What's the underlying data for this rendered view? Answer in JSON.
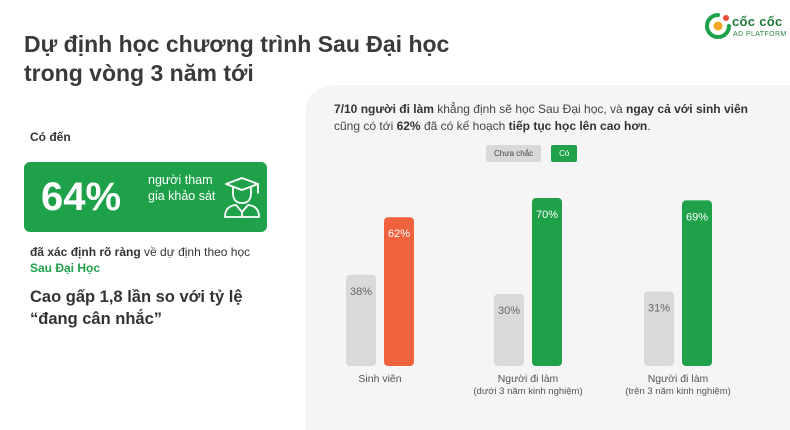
{
  "title_line1": "Dự định học chương trình Sau Đại học",
  "title_line2": "trong vòng 3 năm tới",
  "logo": {
    "name": "cốc cốc",
    "subtitle": "AD PLATFORM",
    "icon": "coccoc-logo-icon",
    "colors": [
      "#1ea149",
      "#f5a623",
      "#e94b3c"
    ]
  },
  "left_panel": {
    "lead": "Có đến",
    "stat_value": "64%",
    "stat_label": "người tham gia khảo sát",
    "stat_icon": "graduate-icon",
    "desc_bold": "đã xác định rõ ràng",
    "desc_text": " về dự định theo học ",
    "desc_highlight": "Sau Đại Học",
    "compare_line1": "Cao gấp 1,8 lần so với tỷ lệ",
    "compare_line2": "“đang cân nhắc”"
  },
  "headline": {
    "part1": "7/10 người đi làm",
    "part2": " khẳng định sẽ học Sau Đại học, và ",
    "part3": "ngay cả với sinh viên",
    "part4": " cũng có tới ",
    "part5": "62%",
    "part6": " đã có kế hoạch ",
    "part7": "tiếp tục học lên cao hơn",
    "part8": "."
  },
  "colors": {
    "green": "#1ea149",
    "orange": "#f0613e",
    "gray": "#d9d9d9",
    "panel": "#f5f5f5"
  },
  "chart_data": {
    "type": "bar",
    "categories": [
      [
        "Sinh viên"
      ],
      [
        "Người đi làm",
        "(dưới 3 năm kinh nghiệm)"
      ],
      [
        "Người đi làm",
        "(trên 3 năm kinh nghiệm)"
      ]
    ],
    "series": [
      {
        "name": "Chưa chắc",
        "color": "#d9d9d9",
        "values": [
          38,
          30,
          31
        ]
      },
      {
        "name": "Có",
        "colors": [
          "#f0613e",
          "#1ea149",
          "#1ea149"
        ],
        "values": [
          62,
          70,
          69
        ]
      }
    ],
    "value_suffix": "%",
    "ylim": [
      0,
      75
    ],
    "legend_position": "top-center",
    "grid": false
  }
}
